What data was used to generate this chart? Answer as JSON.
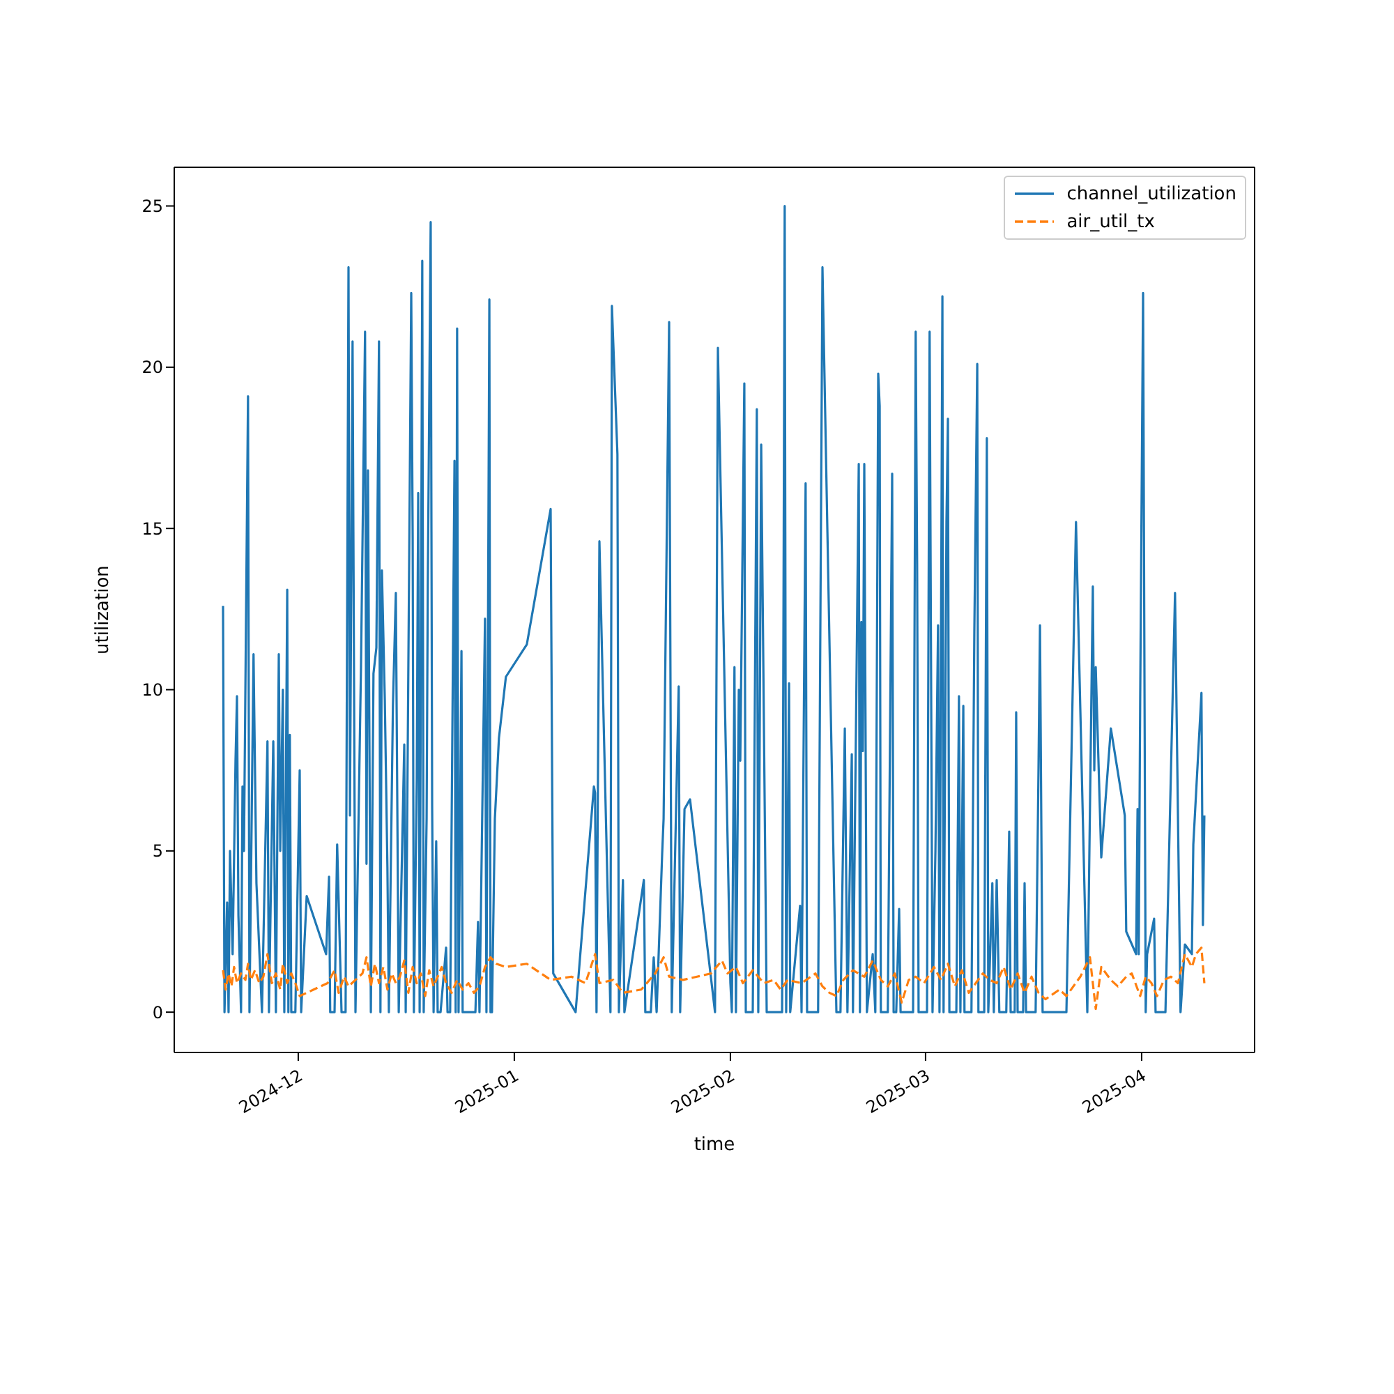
{
  "chart_data": {
    "type": "line",
    "xlabel": "time",
    "ylabel": "utilization",
    "legend": "top right",
    "grid": false,
    "xlim": [
      "2024-11-13T05:00",
      "2025-04-17T05:00"
    ],
    "ylim": [
      -1.25,
      26.2
    ],
    "yticks": [
      0,
      5,
      10,
      15,
      20,
      25
    ],
    "xticks": [
      {
        "value": "2024-12-01",
        "label": "2024-12"
      },
      {
        "value": "2025-01-01",
        "label": "2025-01"
      },
      {
        "value": "2025-02-01",
        "label": "2025-02"
      },
      {
        "value": "2025-03-01",
        "label": "2025-03"
      },
      {
        "value": "2025-04-01",
        "label": "2025-04"
      }
    ],
    "series": [
      {
        "name": "channel_utilization",
        "color": "#1f77b4",
        "line_style": "solid",
        "x": [
          "2024-11-20T05:00",
          "2024-11-20T10:00",
          "2024-11-20T19:00",
          "2024-11-21T00:00",
          "2024-11-21T05:00",
          "2024-11-21T14:00",
          "2024-11-22T00:00",
          "2024-11-22T05:00",
          "2024-11-22T10:00",
          "2024-11-22T19:00",
          "2024-11-23T00:00",
          "2024-11-23T05:00",
          "2024-11-23T19:00",
          "2024-11-24T00:00",
          "2024-11-24T14:00",
          "2024-11-25T00:00",
          "2024-11-25T19:00",
          "2024-11-26T14:00",
          "2024-11-26T19:00",
          "2024-11-27T10:00",
          "2024-11-27T19:00",
          "2024-11-28T05:00",
          "2024-11-28T10:00",
          "2024-11-28T19:00",
          "2024-11-29T00:00",
          "2024-11-29T10:00",
          "2024-11-29T14:00",
          "2024-11-29T19:00",
          "2024-11-30T00:00",
          "2024-11-30T14:00",
          "2024-12-01T05:00",
          "2024-12-01T10:00",
          "2024-12-02T05:00",
          "2024-12-05T00:00",
          "2024-12-05T10:00",
          "2024-12-05T14:00",
          "2024-12-06T05:00",
          "2024-12-06T14:00",
          "2024-12-07T05:00",
          "2024-12-07T19:00",
          "2024-12-08T05:00",
          "2024-12-08T10:00",
          "2024-12-08T19:00",
          "2024-12-09T05:00",
          "2024-12-10T00:00",
          "2024-12-10T14:00",
          "2024-12-10T19:00",
          "2024-12-11T00:00",
          "2024-12-11T10:00",
          "2024-12-11T19:00",
          "2024-12-12T05:00",
          "2024-12-12T14:00",
          "2024-12-12T19:00",
          "2024-12-13T00:00",
          "2024-12-13T10:00",
          "2024-12-13T19:00",
          "2024-12-14T00:00",
          "2024-12-14T14:00",
          "2024-12-15T00:00",
          "2024-12-15T10:00",
          "2024-12-16T05:00",
          "2024-12-16T10:00",
          "2024-12-17T05:00",
          "2024-12-17T10:00",
          "2024-12-17T14:00",
          "2024-12-18T00:00",
          "2024-12-18T05:00",
          "2024-12-18T10:00",
          "2024-12-18T19:00",
          "2024-12-19T00:00",
          "2024-12-19T10:00",
          "2024-12-19T14:00",
          "2024-12-20T00:00",
          "2024-12-20T05:00",
          "2024-12-20T10:00",
          "2024-12-20T19:00",
          "2024-12-21T00:00",
          "2024-12-21T10:00",
          "2024-12-22T05:00",
          "2024-12-22T10:00",
          "2024-12-22T19:00",
          "2024-12-23T10:00",
          "2024-12-23T14:00",
          "2024-12-23T19:00",
          "2024-12-24T00:00",
          "2024-12-24T10:00",
          "2024-12-24T14:00",
          "2024-12-25T19:00",
          "2024-12-26T10:00",
          "2024-12-26T19:00",
          "2024-12-27T00:00",
          "2024-12-27T19:00",
          "2024-12-28T00:00",
          "2024-12-28T10:00",
          "2024-12-28T14:00",
          "2024-12-28T19:00",
          "2024-12-29T05:00",
          "2024-12-29T19:00",
          "2024-12-30T19:00",
          "2025-01-02T19:00",
          "2025-01-06T05:00",
          "2025-01-06T14:00",
          "2025-01-09T19:00",
          "2025-01-12T10:00",
          "2025-01-12T14:00",
          "2025-01-12T19:00",
          "2025-01-13T05:00",
          "2025-01-14T19:00",
          "2025-01-15T00:00",
          "2025-01-15T19:00",
          "2025-01-16T00:00",
          "2025-01-16T14:00",
          "2025-01-16T19:00",
          "2025-01-19T14:00",
          "2025-01-19T19:00",
          "2025-01-20T14:00",
          "2025-01-21T00:00",
          "2025-01-21T10:00",
          "2025-01-22T05:00",
          "2025-01-22T10:00",
          "2025-01-23T05:00",
          "2025-01-23T14:00",
          "2025-01-24T14:00",
          "2025-01-24T19:00",
          "2025-01-25T10:00",
          "2025-01-26T05:00",
          "2025-01-29T19:00",
          "2025-01-30T05:00",
          "2025-02-01T00:00",
          "2025-02-01T05:00",
          "2025-02-01T14:00",
          "2025-02-01T19:00",
          "2025-02-02T05:00",
          "2025-02-02T10:00",
          "2025-02-03T00:00",
          "2025-02-03T05:00",
          "2025-02-04T05:00",
          "2025-02-04T19:00",
          "2025-02-05T00:00",
          "2025-02-05T10:00",
          "2025-02-06T05:00",
          "2025-02-07T19:00",
          "2025-02-08T10:00",
          "2025-02-08T14:00",
          "2025-02-08T19:00",
          "2025-02-09T00:00",
          "2025-02-09T10:00",
          "2025-02-09T14:00",
          "2025-02-11T00:00",
          "2025-02-11T05:00",
          "2025-02-11T19:00",
          "2025-02-12T00:00",
          "2025-02-12T14:00",
          "2025-02-13T10:00",
          "2025-02-13T14:00",
          "2025-02-14T05:00",
          "2025-02-16T05:00",
          "2025-02-16T19:00",
          "2025-02-17T10:00",
          "2025-02-17T19:00",
          "2025-02-18T10:00",
          "2025-02-18T14:00",
          "2025-02-19T10:00",
          "2025-02-19T14:00",
          "2025-02-19T19:00",
          "2025-02-20T00:00",
          "2025-02-20T05:00",
          "2025-02-20T14:00",
          "2025-02-21T10:00",
          "2025-02-21T19:00",
          "2025-02-22T05:00",
          "2025-02-22T10:00",
          "2025-02-22T14:00",
          "2025-02-23T14:00",
          "2025-02-24T05:00",
          "2025-02-24T10:00",
          "2025-02-24T19:00",
          "2025-02-25T05:00",
          "2025-02-25T10:00",
          "2025-02-27T05:00",
          "2025-02-27T14:00",
          "2025-02-27T19:00",
          "2025-02-28T00:00",
          "2025-03-01T05:00",
          "2025-03-01T14:00",
          "2025-03-02T00:00",
          "2025-03-02T10:00",
          "2025-03-02T19:00",
          "2025-03-03T00:00",
          "2025-03-03T10:00",
          "2025-03-03T14:00",
          "2025-03-04T00:00",
          "2025-03-04T05:00",
          "2025-03-04T10:00",
          "2025-03-05T10:00",
          "2025-03-05T19:00",
          "2025-03-06T00:00",
          "2025-03-06T10:00",
          "2025-03-06T14:00",
          "2025-03-07T14:00",
          "2025-03-08T00:00",
          "2025-03-08T10:00",
          "2025-03-08T14:00",
          "2025-03-09T10:00",
          "2025-03-09T19:00",
          "2025-03-10T00:00",
          "2025-03-10T14:00",
          "2025-03-10T19:00",
          "2025-03-11T05:00",
          "2025-03-11T14:00",
          "2025-03-12T14:00",
          "2025-03-13T00:00",
          "2025-03-13T05:00",
          "2025-03-13T19:00",
          "2025-03-14T00:00",
          "2025-03-14T05:00",
          "2025-03-15T00:00",
          "2025-03-15T05:00",
          "2025-03-15T10:00",
          "2025-03-16T19:00",
          "2025-03-17T05:00",
          "2025-03-17T10:00",
          "2025-03-17T19:00",
          "2025-03-21T05:00",
          "2025-03-22T14:00",
          "2025-03-24T05:00",
          "2025-03-25T00:00",
          "2025-03-25T05:00",
          "2025-03-25T10:00",
          "2025-03-26T05:00",
          "2025-03-27T14:00",
          "2025-03-29T14:00",
          "2025-03-29T19:00",
          "2025-03-31T05:00",
          "2025-03-31T10:00",
          "2025-03-31T14:00",
          "2025-03-31T19:00",
          "2025-04-01T05:00",
          "2025-04-01T14:00",
          "2025-04-01T19:00",
          "2025-04-02T19:00",
          "2025-04-03T00:00",
          "2025-04-04T10:00",
          "2025-04-05T19:00",
          "2025-04-06T14:00",
          "2025-04-07T05:00",
          "2025-04-08T05:00",
          "2025-04-08T10:00",
          "2025-04-09T14:00",
          "2025-04-09T19:00",
          "2025-04-10T00:00"
        ],
        "values": [
          12.6,
          0,
          3.4,
          0,
          5.0,
          1.8,
          7.8,
          9.8,
          3,
          0,
          7,
          5,
          19.1,
          0,
          11.1,
          4,
          0,
          8.4,
          0,
          8.4,
          0,
          11.1,
          5,
          10,
          0,
          13.1,
          0,
          8.6,
          0,
          0,
          7.5,
          0,
          3.6,
          1.8,
          4.2,
          0,
          0,
          5.2,
          0,
          0,
          23.1,
          6.1,
          20.8,
          0,
          10.7,
          21.1,
          4.6,
          16.8,
          0,
          10.5,
          11.3,
          20.8,
          0,
          13.7,
          9.7,
          4.5,
          0,
          9.5,
          13,
          0,
          8.3,
          0,
          22.3,
          14.7,
          0,
          7.2,
          16.1,
          0,
          23.3,
          0,
          6,
          13.2,
          24.5,
          6.4,
          0,
          5.3,
          0,
          0,
          2,
          0,
          0,
          17.1,
          0,
          21.2,
          0,
          11.2,
          0,
          0,
          0,
          2.8,
          0,
          12.2,
          0,
          22.1,
          0,
          0,
          6,
          8.5,
          10.4,
          11.4,
          15.6,
          1.2,
          0,
          7,
          6.8,
          0,
          14.6,
          0,
          21.9,
          17.3,
          0,
          4.1,
          0,
          4.1,
          0,
          0,
          1.7,
          0,
          4.9,
          6.0,
          21.4,
          0,
          10.1,
          0,
          6.3,
          6.6,
          0,
          20.6,
          0.9,
          0,
          10.7,
          0,
          10,
          7.8,
          19.5,
          0,
          0,
          18.7,
          0,
          17.6,
          0,
          0,
          0,
          10,
          25,
          0,
          10.2,
          0,
          3.3,
          0,
          16.4,
          0,
          0,
          0,
          0,
          23.1,
          0,
          0,
          8.8,
          0,
          8.0,
          0,
          17,
          0,
          12.1,
          8.1,
          17,
          0,
          1.8,
          0,
          19.8,
          18.8,
          0,
          0,
          16.7,
          0,
          0,
          3.2,
          0,
          0,
          21.1,
          13.9,
          0,
          0,
          21.1,
          0,
          5,
          12,
          0,
          22.2,
          0,
          15.2,
          18.4,
          0,
          0,
          9.8,
          0,
          9.5,
          0,
          0,
          11.8,
          20.1,
          0,
          0,
          17.8,
          0,
          4,
          0,
          4.1,
          0,
          0,
          5.6,
          0,
          0,
          9.3,
          0,
          0,
          4,
          0,
          0,
          7.6,
          12,
          0,
          0,
          15.2,
          0,
          13.2,
          7.5,
          10.7,
          4.8,
          8.8,
          6.1,
          2.5,
          1.8,
          6.3,
          1.8,
          9.6,
          22.3,
          0,
          1.8,
          2.9,
          0,
          0,
          13,
          0,
          2.1,
          1.8,
          5.2,
          9.9,
          2.7,
          6.1
        ]
      },
      {
        "name": "air_util_tx",
        "color": "#ff7f0e",
        "line_style": "dashed",
        "x": [
          "2024-11-20T05:00",
          "2024-11-20T14:00",
          "2024-11-21T00:00",
          "2024-11-21T10:00",
          "2024-11-21T19:00",
          "2024-11-22T05:00",
          "2024-11-22T19:00",
          "2024-11-23T10:00",
          "2024-11-23T19:00",
          "2024-11-24T05:00",
          "2024-11-24T19:00",
          "2024-11-25T10:00",
          "2024-11-26T00:00",
          "2024-11-26T14:00",
          "2024-11-27T05:00",
          "2024-11-27T19:00",
          "2024-11-28T10:00",
          "2024-11-28T19:00",
          "2024-11-29T10:00",
          "2024-11-30T00:00",
          "2024-11-30T14:00",
          "2024-12-01T05:00",
          "2024-12-03T05:00",
          "2024-12-05T05:00",
          "2024-12-06T05:00",
          "2024-12-06T19:00",
          "2024-12-07T14:00",
          "2024-12-08T05:00",
          "2024-12-09T05:00",
          "2024-12-10T05:00",
          "2024-12-10T19:00",
          "2024-12-11T10:00",
          "2024-12-12T00:00",
          "2024-12-12T14:00",
          "2024-12-13T05:00",
          "2024-12-13T19:00",
          "2024-12-14T10:00",
          "2024-12-15T00:00",
          "2024-12-15T14:00",
          "2024-12-16T05:00",
          "2024-12-16T19:00",
          "2024-12-17T10:00",
          "2024-12-18T00:00",
          "2024-12-18T14:00",
          "2024-12-19T05:00",
          "2024-12-19T19:00",
          "2024-12-20T10:00",
          "2024-12-21T00:00",
          "2024-12-21T14:00",
          "2024-12-22T05:00",
          "2024-12-23T00:00",
          "2024-12-23T19:00",
          "2024-12-24T14:00",
          "2024-12-25T10:00",
          "2024-12-26T05:00",
          "2024-12-27T00:00",
          "2024-12-27T19:00",
          "2024-12-28T14:00",
          "2024-12-29T10:00",
          "2024-12-30T19:00",
          "2025-01-02T19:00",
          "2025-01-06T05:00",
          "2025-01-09T05:00",
          "2025-01-11T05:00",
          "2025-01-12T14:00",
          "2025-01-13T05:00",
          "2025-01-15T05:00",
          "2025-01-16T14:00",
          "2025-01-19T05:00",
          "2025-01-21T05:00",
          "2025-01-22T10:00",
          "2025-01-23T05:00",
          "2025-01-25T05:00",
          "2025-01-27T05:00",
          "2025-01-29T05:00",
          "2025-01-30T19:00",
          "2025-01-31T14:00",
          "2025-02-01T19:00",
          "2025-02-02T19:00",
          "2025-02-04T05:00",
          "2025-02-05T19:00",
          "2025-02-07T05:00",
          "2025-02-08T05:00",
          "2025-02-09T05:00",
          "2025-02-11T05:00",
          "2025-02-13T05:00",
          "2025-02-14T05:00",
          "2025-02-15T05:00",
          "2025-02-16T05:00",
          "2025-02-17T05:00",
          "2025-02-18T14:00",
          "2025-02-20T05:00",
          "2025-02-21T10:00",
          "2025-02-22T14:00",
          "2025-02-23T14:00",
          "2025-02-24T14:00",
          "2025-02-25T14:00",
          "2025-02-26T14:00",
          "2025-02-27T14:00",
          "2025-02-28T19:00",
          "2025-03-02T05:00",
          "2025-03-03T05:00",
          "2025-03-04T05:00",
          "2025-03-05T05:00",
          "2025-03-06T05:00",
          "2025-03-07T05:00",
          "2025-03-08T05:00",
          "2025-03-09T05:00",
          "2025-03-10T05:00",
          "2025-03-11T05:00",
          "2025-03-12T05:00",
          "2025-03-13T05:00",
          "2025-03-14T05:00",
          "2025-03-15T05:00",
          "2025-03-16T05:00",
          "2025-03-17T05:00",
          "2025-03-18T05:00",
          "2025-03-20T05:00",
          "2025-03-21T05:00",
          "2025-03-23T05:00",
          "2025-03-24T14:00",
          "2025-03-25T10:00",
          "2025-03-26T05:00",
          "2025-03-27T14:00",
          "2025-03-28T14:00",
          "2025-03-29T19:00",
          "2025-03-30T14:00",
          "2025-03-31T19:00",
          "2025-04-01T14:00",
          "2025-04-02T10:00",
          "2025-04-03T05:00",
          "2025-04-04T05:00",
          "2025-04-05T05:00",
          "2025-04-06T05:00",
          "2025-04-07T05:00",
          "2025-04-08T05:00",
          "2025-04-08T19:00",
          "2025-04-09T14:00",
          "2025-04-10T00:00"
        ],
        "values": [
          1.3,
          0.7,
          1.2,
          0.8,
          1.4,
          0.9,
          1.2,
          1.0,
          1.5,
          1.0,
          1.3,
          0.9,
          1.1,
          1.8,
          0.9,
          1.2,
          0.7,
          1.5,
          0.9,
          1.2,
          0.9,
          0.5,
          0.7,
          0.9,
          1.3,
          0.6,
          1.1,
          0.8,
          1.0,
          1.2,
          1.7,
          0.8,
          1.5,
          0.9,
          1.4,
          0.7,
          1.2,
          0.9,
          1.1,
          1.6,
          0.6,
          1.4,
          0.9,
          1.2,
          0.5,
          1.3,
          0.8,
          1.1,
          1.4,
          0.9,
          0.6,
          1.0,
          0.7,
          0.9,
          0.6,
          0.8,
          1.4,
          1.7,
          1.5,
          1.4,
          1.5,
          1.0,
          1.1,
          0.9,
          1.8,
          0.9,
          1.0,
          0.6,
          0.7,
          1.2,
          1.7,
          1.1,
          1.0,
          1.1,
          1.2,
          1.6,
          1.2,
          1.4,
          0.9,
          1.3,
          0.9,
          1.0,
          0.7,
          1.0,
          0.9,
          1.2,
          0.8,
          0.6,
          0.5,
          1.0,
          1.3,
          1.1,
          1.6,
          1.0,
          0.8,
          1.2,
          0.3,
          1.0,
          1.1,
          0.9,
          1.4,
          1.0,
          1.5,
          0.8,
          1.3,
          0.6,
          0.9,
          1.2,
          1.0,
          0.9,
          1.4,
          0.7,
          1.2,
          0.6,
          1.1,
          0.6,
          0.4,
          0.7,
          0.5,
          1.1,
          1.7,
          0.1,
          1.4,
          1.0,
          0.8,
          1.1,
          1.2,
          0.5,
          1.1,
          0.9,
          0.5,
          1.0,
          1.1,
          0.9,
          1.8,
          1.4,
          1.8,
          2.0,
          0.9
        ]
      }
    ]
  }
}
